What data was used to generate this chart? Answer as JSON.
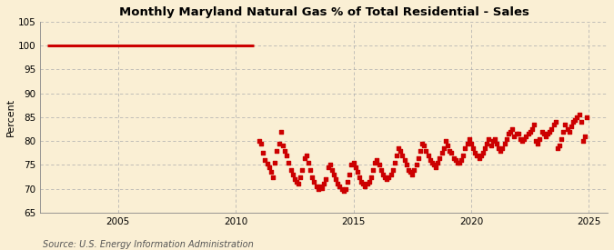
{
  "title": "Monthly Maryland Natural Gas % of Total Residential - Sales",
  "ylabel": "Percent",
  "source": "Source: U.S. Energy Information Administration",
  "bg_color": "#faefd4",
  "plot_bg_color": "#faefd4",
  "line_color": "#cc0000",
  "dot_color": "#cc0000",
  "ylim": [
    65,
    105
  ],
  "yticks": [
    65,
    70,
    75,
    80,
    85,
    90,
    95,
    100,
    105
  ],
  "xlim_start": 2001.7,
  "xlim_end": 2025.8,
  "line_start": 2002.0,
  "line_end": 2010.75,
  "line_value": 100.0,
  "scatter_data": [
    [
      2011.0,
      80.0
    ],
    [
      2011.083,
      79.5
    ],
    [
      2011.167,
      77.5
    ],
    [
      2011.25,
      76.0
    ],
    [
      2011.333,
      75.2
    ],
    [
      2011.417,
      74.5
    ],
    [
      2011.5,
      73.5
    ],
    [
      2011.583,
      72.5
    ],
    [
      2011.667,
      75.5
    ],
    [
      2011.75,
      78.0
    ],
    [
      2011.833,
      79.5
    ],
    [
      2011.917,
      82.0
    ],
    [
      2012.0,
      79.0
    ],
    [
      2012.083,
      78.0
    ],
    [
      2012.167,
      77.0
    ],
    [
      2012.25,
      75.5
    ],
    [
      2012.333,
      74.0
    ],
    [
      2012.417,
      73.0
    ],
    [
      2012.5,
      72.0
    ],
    [
      2012.583,
      71.5
    ],
    [
      2012.667,
      71.0
    ],
    [
      2012.75,
      72.5
    ],
    [
      2012.833,
      74.0
    ],
    [
      2012.917,
      76.5
    ],
    [
      2013.0,
      77.0
    ],
    [
      2013.083,
      75.5
    ],
    [
      2013.167,
      74.0
    ],
    [
      2013.25,
      72.5
    ],
    [
      2013.333,
      71.5
    ],
    [
      2013.417,
      70.5
    ],
    [
      2013.5,
      70.0
    ],
    [
      2013.583,
      70.5
    ],
    [
      2013.667,
      70.2
    ],
    [
      2013.75,
      71.0
    ],
    [
      2013.833,
      72.0
    ],
    [
      2013.917,
      74.5
    ],
    [
      2014.0,
      75.0
    ],
    [
      2014.083,
      74.0
    ],
    [
      2014.167,
      73.0
    ],
    [
      2014.25,
      72.0
    ],
    [
      2014.333,
      71.0
    ],
    [
      2014.417,
      70.5
    ],
    [
      2014.5,
      70.0
    ],
    [
      2014.583,
      69.5
    ],
    [
      2014.667,
      70.0
    ],
    [
      2014.75,
      71.5
    ],
    [
      2014.833,
      73.0
    ],
    [
      2014.917,
      75.0
    ],
    [
      2015.0,
      75.5
    ],
    [
      2015.083,
      74.5
    ],
    [
      2015.167,
      73.5
    ],
    [
      2015.25,
      72.5
    ],
    [
      2015.333,
      71.5
    ],
    [
      2015.417,
      71.0
    ],
    [
      2015.5,
      70.5
    ],
    [
      2015.583,
      71.0
    ],
    [
      2015.667,
      71.5
    ],
    [
      2015.75,
      72.5
    ],
    [
      2015.833,
      74.0
    ],
    [
      2015.917,
      75.5
    ],
    [
      2016.0,
      76.0
    ],
    [
      2016.083,
      75.0
    ],
    [
      2016.167,
      74.0
    ],
    [
      2016.25,
      73.0
    ],
    [
      2016.333,
      72.5
    ],
    [
      2016.417,
      72.0
    ],
    [
      2016.5,
      72.5
    ],
    [
      2016.583,
      73.0
    ],
    [
      2016.667,
      74.0
    ],
    [
      2016.75,
      75.5
    ],
    [
      2016.833,
      77.0
    ],
    [
      2016.917,
      78.5
    ],
    [
      2017.0,
      78.0
    ],
    [
      2017.083,
      77.0
    ],
    [
      2017.167,
      76.0
    ],
    [
      2017.25,
      75.0
    ],
    [
      2017.333,
      74.0
    ],
    [
      2017.417,
      73.5
    ],
    [
      2017.5,
      73.0
    ],
    [
      2017.583,
      74.0
    ],
    [
      2017.667,
      75.0
    ],
    [
      2017.75,
      76.5
    ],
    [
      2017.833,
      78.0
    ],
    [
      2017.917,
      79.5
    ],
    [
      2018.0,
      79.0
    ],
    [
      2018.083,
      78.0
    ],
    [
      2018.167,
      77.0
    ],
    [
      2018.25,
      76.0
    ],
    [
      2018.333,
      75.5
    ],
    [
      2018.417,
      75.0
    ],
    [
      2018.5,
      74.5
    ],
    [
      2018.583,
      75.5
    ],
    [
      2018.667,
      76.5
    ],
    [
      2018.75,
      77.5
    ],
    [
      2018.833,
      78.5
    ],
    [
      2018.917,
      80.0
    ],
    [
      2019.0,
      79.0
    ],
    [
      2019.083,
      78.0
    ],
    [
      2019.167,
      77.5
    ],
    [
      2019.25,
      76.5
    ],
    [
      2019.333,
      76.0
    ],
    [
      2019.417,
      75.5
    ],
    [
      2019.5,
      75.5
    ],
    [
      2019.583,
      76.0
    ],
    [
      2019.667,
      77.0
    ],
    [
      2019.75,
      78.5
    ],
    [
      2019.833,
      79.5
    ],
    [
      2019.917,
      80.5
    ],
    [
      2020.0,
      79.5
    ],
    [
      2020.083,
      78.5
    ],
    [
      2020.167,
      77.5
    ],
    [
      2020.25,
      77.0
    ],
    [
      2020.333,
      76.5
    ],
    [
      2020.417,
      77.0
    ],
    [
      2020.5,
      77.5
    ],
    [
      2020.583,
      78.5
    ],
    [
      2020.667,
      79.5
    ],
    [
      2020.75,
      80.5
    ],
    [
      2020.833,
      79.0
    ],
    [
      2020.917,
      80.0
    ],
    [
      2021.0,
      80.5
    ],
    [
      2021.083,
      79.5
    ],
    [
      2021.167,
      78.5
    ],
    [
      2021.25,
      78.0
    ],
    [
      2021.333,
      78.5
    ],
    [
      2021.417,
      79.5
    ],
    [
      2021.5,
      80.5
    ],
    [
      2021.583,
      81.5
    ],
    [
      2021.667,
      82.0
    ],
    [
      2021.75,
      82.5
    ],
    [
      2021.833,
      81.0
    ],
    [
      2021.917,
      81.5
    ],
    [
      2022.0,
      81.5
    ],
    [
      2022.083,
      80.5
    ],
    [
      2022.167,
      80.0
    ],
    [
      2022.25,
      80.5
    ],
    [
      2022.333,
      81.0
    ],
    [
      2022.417,
      81.5
    ],
    [
      2022.5,
      82.0
    ],
    [
      2022.583,
      82.5
    ],
    [
      2022.667,
      83.5
    ],
    [
      2022.75,
      80.0
    ],
    [
      2022.833,
      79.5
    ],
    [
      2022.917,
      80.5
    ],
    [
      2023.0,
      82.0
    ],
    [
      2023.083,
      81.5
    ],
    [
      2023.167,
      81.0
    ],
    [
      2023.25,
      81.5
    ],
    [
      2023.333,
      82.0
    ],
    [
      2023.417,
      82.5
    ],
    [
      2023.5,
      83.5
    ],
    [
      2023.583,
      84.0
    ],
    [
      2023.667,
      78.5
    ],
    [
      2023.75,
      79.0
    ],
    [
      2023.833,
      80.5
    ],
    [
      2023.917,
      82.0
    ],
    [
      2024.0,
      83.5
    ],
    [
      2024.083,
      82.5
    ],
    [
      2024.167,
      82.0
    ],
    [
      2024.25,
      83.0
    ],
    [
      2024.333,
      84.0
    ],
    [
      2024.417,
      84.5
    ],
    [
      2024.5,
      85.0
    ],
    [
      2024.583,
      85.5
    ],
    [
      2024.667,
      84.0
    ],
    [
      2024.75,
      80.0
    ],
    [
      2024.833,
      81.0
    ],
    [
      2024.917,
      85.0
    ]
  ]
}
